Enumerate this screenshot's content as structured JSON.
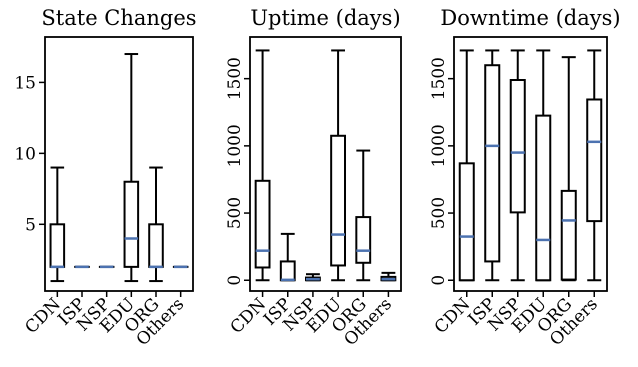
{
  "chart_data": [
    {
      "type": "box",
      "title": "State Changes",
      "xlabel": "",
      "ylabel": "",
      "ylim": [
        0.3,
        18.2
      ],
      "yticks": [
        5,
        10,
        15
      ],
      "categories": [
        "CDN",
        "ISP",
        "NSP",
        "EDU",
        "ORG",
        "Others"
      ],
      "boxes": [
        {
          "category": "CDN",
          "whislo": 1,
          "q1": 2,
          "med": 2,
          "q3": 5,
          "whishi": 9
        },
        {
          "category": "ISP",
          "whislo": 2,
          "q1": 2,
          "med": 2,
          "q3": 2,
          "whishi": 2
        },
        {
          "category": "NSP",
          "whislo": 2,
          "q1": 2,
          "med": 2,
          "q3": 2,
          "whishi": 2
        },
        {
          "category": "EDU",
          "whislo": 1,
          "q1": 2,
          "med": 4,
          "q3": 8,
          "whishi": 17
        },
        {
          "category": "ORG",
          "whislo": 1,
          "q1": 2,
          "med": 2,
          "q3": 5,
          "whishi": 9
        },
        {
          "category": "Others",
          "whislo": 2,
          "q1": 2,
          "med": 2,
          "q3": 2,
          "whishi": 2
        }
      ]
    },
    {
      "type": "box",
      "title": "Uptime (days)",
      "xlabel": "",
      "ylabel": "",
      "ylim": [
        -80,
        1810
      ],
      "yticks": [
        0,
        500,
        1000,
        1500
      ],
      "categories": [
        "CDN",
        "ISP",
        "NSP",
        "EDU",
        "ORG",
        "Others"
      ],
      "boxes": [
        {
          "category": "CDN",
          "whislo": 0,
          "q1": 95,
          "med": 220,
          "q3": 740,
          "whishi": 1710
        },
        {
          "category": "ISP",
          "whislo": 0,
          "q1": 0,
          "med": 3,
          "q3": 140,
          "whishi": 345
        },
        {
          "category": "NSP",
          "whislo": 0,
          "q1": 0,
          "med": 8,
          "q3": 20,
          "whishi": 45
        },
        {
          "category": "EDU",
          "whislo": 0,
          "q1": 110,
          "med": 340,
          "q3": 1075,
          "whishi": 1710
        },
        {
          "category": "ORG",
          "whislo": 0,
          "q1": 130,
          "med": 220,
          "q3": 470,
          "whishi": 965
        },
        {
          "category": "Others",
          "whislo": 0,
          "q1": 0,
          "med": 8,
          "q3": 25,
          "whishi": 55
        }
      ]
    },
    {
      "type": "box",
      "title": "Downtime (days)",
      "xlabel": "",
      "ylabel": "",
      "ylim": [
        -80,
        1810
      ],
      "yticks": [
        0,
        500,
        1000,
        1500
      ],
      "categories": [
        "CDN",
        "ISP",
        "NSP",
        "EDU",
        "ORG",
        "Others"
      ],
      "boxes": [
        {
          "category": "CDN",
          "whislo": 0,
          "q1": 0,
          "med": 325,
          "q3": 870,
          "whishi": 1710
        },
        {
          "category": "ISP",
          "whislo": 0,
          "q1": 140,
          "med": 1000,
          "q3": 1600,
          "whishi": 1710
        },
        {
          "category": "NSP",
          "whislo": 0,
          "q1": 505,
          "med": 950,
          "q3": 1490,
          "whishi": 1710
        },
        {
          "category": "EDU",
          "whislo": 0,
          "q1": 0,
          "med": 300,
          "q3": 1225,
          "whishi": 1710
        },
        {
          "category": "ORG",
          "whislo": 0,
          "q1": 5,
          "med": 445,
          "q3": 665,
          "whishi": 1660
        },
        {
          "category": "Others",
          "whislo": 0,
          "q1": 440,
          "med": 1030,
          "q3": 1345,
          "whishi": 1710
        }
      ]
    }
  ],
  "colors": {
    "box": "#000000",
    "median": "#4c72b0",
    "background": "#ffffff"
  }
}
